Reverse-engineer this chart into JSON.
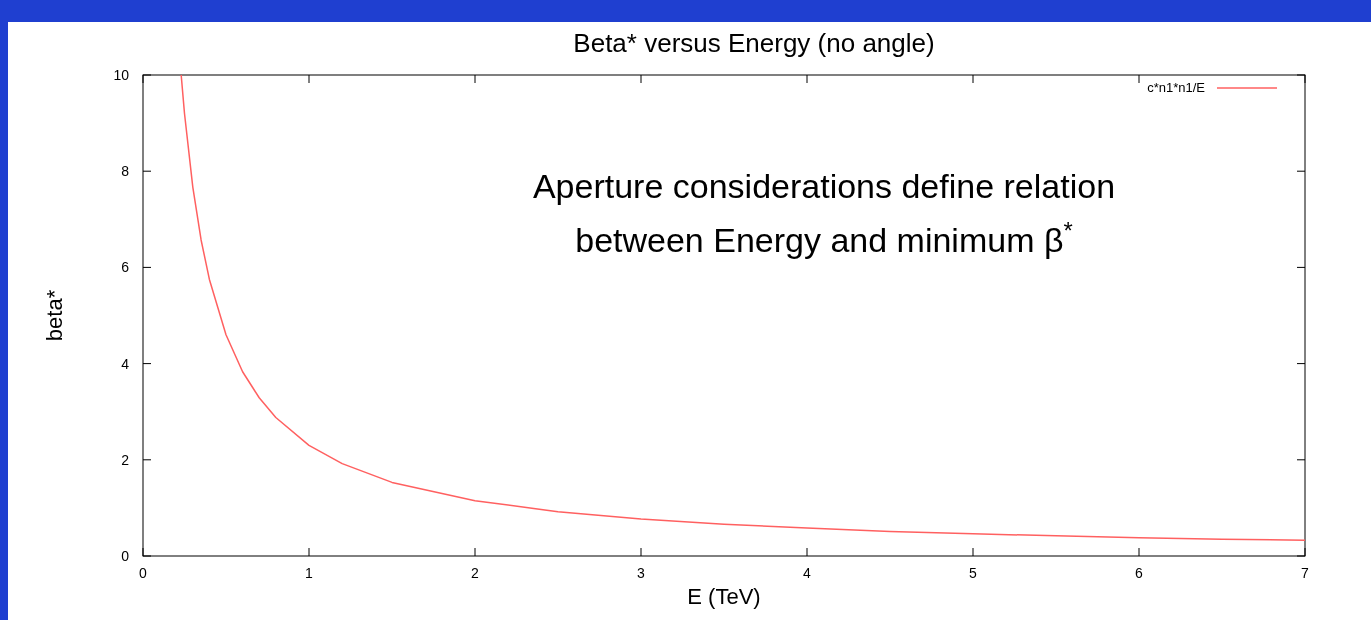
{
  "chart_data": {
    "type": "line",
    "title": "Beta* versus Energy (no angle)",
    "xlabel": "E (TeV)",
    "ylabel": "beta*",
    "x": [
      0.23,
      0.25,
      0.3,
      0.35,
      0.4,
      0.5,
      0.6,
      0.7,
      0.8,
      1,
      1.2,
      1.5,
      2,
      2.5,
      3,
      3.5,
      4,
      4.5,
      5,
      5.5,
      6,
      6.5,
      7
    ],
    "series": [
      {
        "name": "c*n1*n1/E",
        "color": "#ff6060",
        "values": [
          10,
          9.2,
          7.67,
          6.57,
          5.75,
          4.6,
          3.83,
          3.29,
          2.88,
          2.3,
          1.92,
          1.53,
          1.15,
          0.92,
          0.77,
          0.66,
          0.58,
          0.51,
          0.46,
          0.42,
          0.38,
          0.35,
          0.33
        ]
      }
    ],
    "xlim": [
      0,
      7
    ],
    "xticks": [
      0,
      1,
      2,
      3,
      4,
      5,
      6,
      7
    ],
    "ylim": [
      0,
      10
    ],
    "yticks": [
      0,
      2,
      4,
      6,
      8,
      10
    ],
    "grid": false,
    "legend": "top right",
    "line_style": "solid",
    "marker": "none",
    "annotations": [
      "Aperture considerations define relation between Energy and minimum β$^{*}$"
    ]
  }
}
